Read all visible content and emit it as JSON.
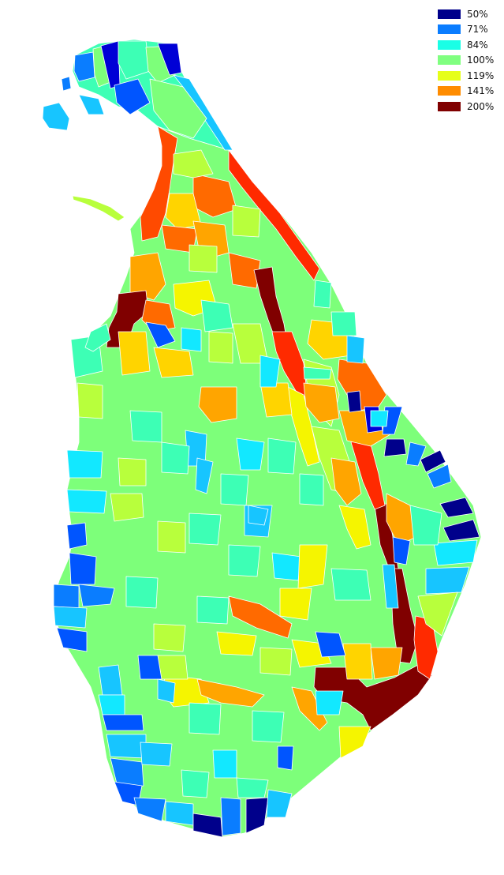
{
  "legend": {
    "items": [
      {
        "label": "50%",
        "color": "#00008b"
      },
      {
        "label": "71%",
        "color": "#0a7dff"
      },
      {
        "label": "84%",
        "color": "#1affe6"
      },
      {
        "label": "100%",
        "color": "#80ff80"
      },
      {
        "label": "119%",
        "color": "#e6ff1a"
      },
      {
        "label": "141%",
        "color": "#ff8c00"
      },
      {
        "label": "200%",
        "color": "#800000"
      }
    ]
  },
  "colors": {
    "background": "#ffffff",
    "region_border": "#ffffff",
    "base_fill": "#7dff7a",
    "teal": "#3dffb5",
    "cyan": "#12e8ff",
    "sky": "#17c5ff",
    "blue": "#0a7dff",
    "royal": "#0055ff",
    "navy": "#00008b",
    "deepblue": "#0000d6",
    "lime": "#b8ff3c",
    "yellow": "#f5f500",
    "gold": "#ffd400",
    "orange": "#ffa500",
    "orange_red": "#ff6a00",
    "red_orange": "#ff4a00",
    "red": "#ff2a00",
    "maroon": "#800000"
  }
}
